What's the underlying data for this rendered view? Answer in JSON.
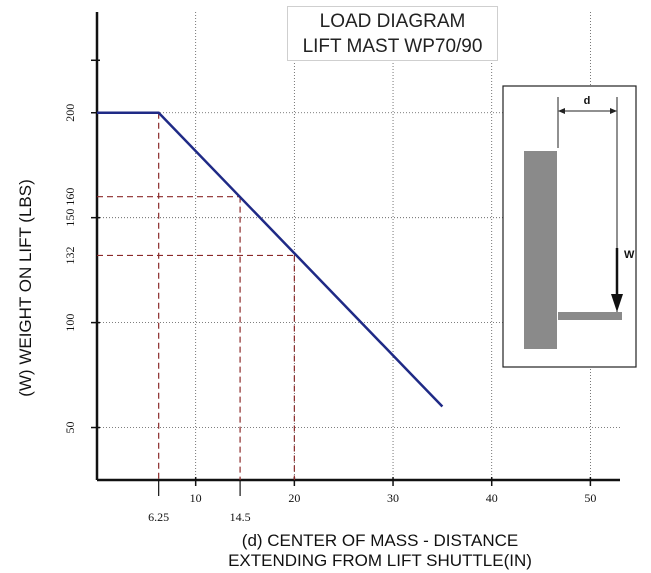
{
  "chart_data": {
    "type": "line",
    "title_line1": "LOAD DIAGRAM",
    "title_line2": "LIFT MAST WP70/90",
    "xlabel_line1": "(d) CENTER OF MASS - DISTANCE",
    "xlabel_line2": "EXTENDING FROM LIFT SHUTTLE(IN)",
    "ylabel": "(W) WEIGHT ON LIFT (LBS)",
    "xlim": [
      0,
      53
    ],
    "ylim": [
      25,
      248
    ],
    "x_ticks": [
      10,
      20,
      30,
      40,
      50
    ],
    "x_tick_labels": [
      "10",
      "20",
      "30",
      "40",
      "50"
    ],
    "y_ticks": [
      50,
      100,
      150,
      200
    ],
    "y_tick_labels": [
      "50",
      "100",
      "150",
      "200"
    ],
    "grid": true,
    "series": [
      {
        "x": [
          0,
          6.25,
          35
        ],
        "y": [
          200,
          200,
          60
        ],
        "color": "#1f2a86"
      }
    ],
    "reference_lines": [
      {
        "x": 6.25,
        "y": 200,
        "x_label": "6.25",
        "y_label": ""
      },
      {
        "x": 14.5,
        "y": 160,
        "x_label": "14.5",
        "y_label": "160"
      },
      {
        "x": 20,
        "y": 132,
        "x_label": "",
        "y_label": "132"
      }
    ],
    "reference_color": "#8b2a2a",
    "inset": {
      "d_label": "d",
      "w_label": "W"
    }
  }
}
